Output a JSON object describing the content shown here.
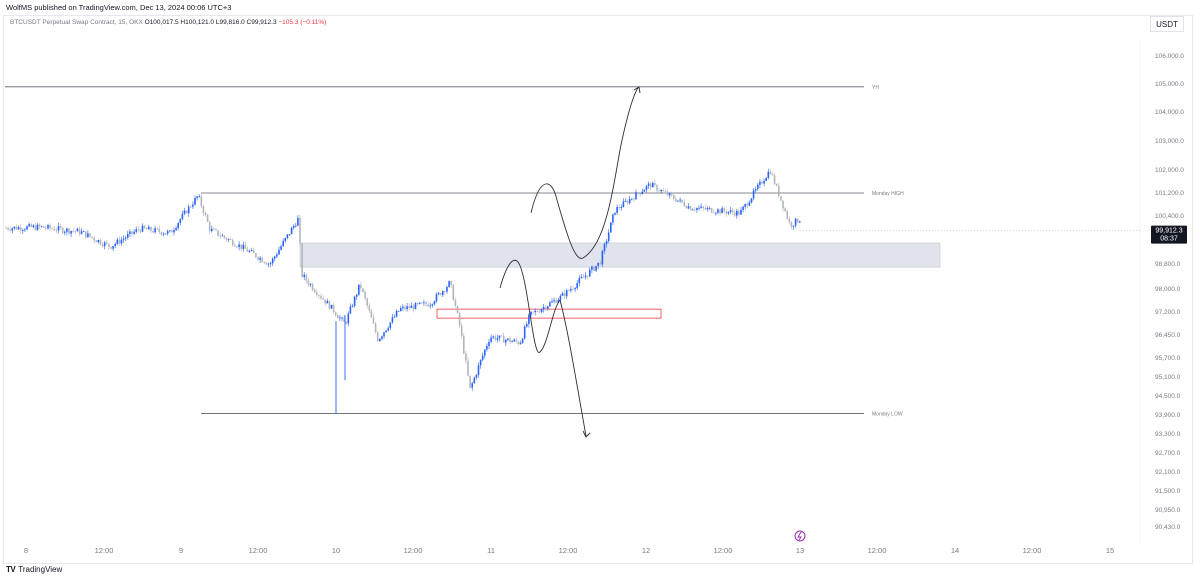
{
  "header": {
    "published": "WolfMS published on TradingView.com, Dec 13, 2024 00:06 UTC+3",
    "symbol": "BTCUSDT Perpetual Swap Contract, 15, OKX",
    "ohlc": "O100,017.5 H100,121.0 L99,816.0 C99,912.3",
    "change": "−105.3 (−0.11%)",
    "unit": "USDT"
  },
  "footer": {
    "logo_mark": "TV",
    "brand": "TradingView"
  },
  "colors": {
    "up": "#2962ff",
    "down": "#b2b5be",
    "level_line": "#5d606b",
    "zone_fill": "#e1e3ea",
    "zone_border": "#c2c6d0",
    "red_box": "#f23645",
    "event_icon": "#9c27b0"
  },
  "chart_data": {
    "type": "candlestick",
    "y_ticks": [
      "106,000.0",
      "105,000.0",
      "104,000.0",
      "103,000.0",
      "102,000.0",
      "101,200.0",
      "100,400.0",
      "99,600.0",
      "98,800.0",
      "98,000.0",
      "97,200.0",
      "96,450.0",
      "95,700.0",
      "95,100.0",
      "94,500.0",
      "93,900.0",
      "93,300.0",
      "92,700.0",
      "92,100.0",
      "91,500.0",
      "90,950.0",
      "90,430.0"
    ],
    "x_ticks": [
      "8",
      "12:00",
      "9",
      "12:00",
      "10",
      "12:00",
      "11",
      "12:00",
      "12",
      "12:00",
      "13",
      "12:00",
      "14",
      "12:00",
      "15"
    ],
    "last_price": {
      "value": "99,912.3",
      "countdown": "08:37"
    },
    "levels": [
      {
        "label": "YH",
        "price": 104900
      },
      {
        "label": "Monday HIGH",
        "price": 101200
      },
      {
        "label": "Monday LOW",
        "price": 93950
      }
    ],
    "zones": [
      {
        "type": "gray",
        "from": 98700,
        "to": 99500
      },
      {
        "type": "red",
        "from": 97000,
        "to": 97300
      }
    ],
    "price_path": [
      [
        0,
        100000
      ],
      [
        40,
        100030
      ],
      [
        80,
        99880
      ],
      [
        110,
        99380
      ],
      [
        140,
        99980
      ],
      [
        170,
        99830
      ],
      [
        198,
        101100
      ],
      [
        210,
        99950
      ],
      [
        240,
        99400
      ],
      [
        270,
        98800
      ],
      [
        298,
        100300
      ],
      [
        302,
        98450
      ],
      [
        330,
        97400
      ],
      [
        345,
        96800
      ],
      [
        360,
        98150
      ],
      [
        378,
        96300
      ],
      [
        400,
        97300
      ],
      [
        430,
        97500
      ],
      [
        450,
        98200
      ],
      [
        460,
        96700
      ],
      [
        470,
        94700
      ],
      [
        490,
        96400
      ],
      [
        520,
        96200
      ],
      [
        530,
        97100
      ],
      [
        560,
        97700
      ],
      [
        600,
        98850
      ],
      [
        615,
        100600
      ],
      [
        650,
        101500
      ],
      [
        690,
        100700
      ],
      [
        740,
        100500
      ],
      [
        770,
        102000
      ],
      [
        790,
        100100
      ],
      [
        800,
        100300
      ]
    ]
  }
}
